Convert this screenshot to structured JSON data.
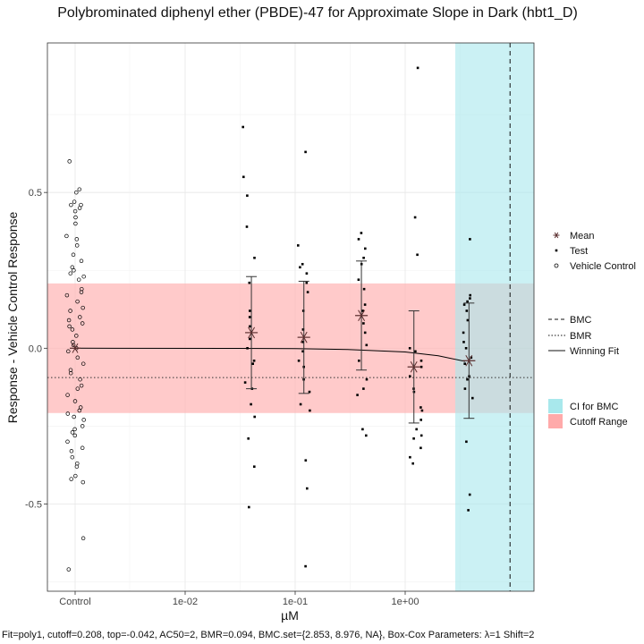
{
  "chart_data": {
    "type": "scatter",
    "title": "Polybrominated diphenyl ether (PBDE)-47 for Approximate Slope in Dark (hbt1_D)",
    "xlabel": "µM",
    "ylabel": "Response - Vehicle Control Response",
    "x_scale": "log10",
    "x_ticks": [
      "Control",
      "1e-02",
      "1e-01",
      "1e+00"
    ],
    "y_ticks": [
      "0.5",
      "0.0",
      "-0.5"
    ],
    "ylim": [
      -0.78,
      0.98
    ],
    "cutoff": 0.208,
    "bmr": -0.094,
    "bmc": 8.976,
    "ci_bmc": [
      2.853,
      8.976
    ],
    "grid": true,
    "legend_position": "right",
    "legend_groups": [
      [
        "Mean",
        "Test",
        "Vehicle Control"
      ],
      [
        "BMC",
        "BMR",
        "Winning Fit"
      ],
      [
        "CI for BMC",
        "Cutoff Range"
      ]
    ],
    "colors": {
      "cutoff": "#ffb3b3",
      "ci": "#a8e8ec",
      "line": "#000000",
      "mean": "#5a2e2e"
    },
    "footer": "Fit=poly1, cutoff=0.208, top=-0.042, AC50=2, BMR=0.094, BMC.set={2.853, 8.976, NA}, Box-Cox Parameters: λ=1 Shift=2",
    "fit_curve": {
      "x": [
        0.001,
        0.03,
        0.1,
        0.3,
        1,
        2,
        3.5
      ],
      "y": [
        0.0,
        -0.0004,
        -0.0014,
        -0.004,
        -0.012,
        -0.024,
        -0.042
      ]
    },
    "vehicle_control": [
      0.6,
      0.51,
      0.5,
      0.47,
      0.46,
      0.46,
      0.45,
      0.44,
      0.42,
      0.4,
      0.36,
      0.35,
      0.33,
      0.3,
      0.28,
      0.26,
      0.25,
      0.24,
      0.23,
      0.22,
      0.19,
      0.18,
      0.17,
      0.15,
      0.13,
      0.12,
      0.1,
      0.09,
      0.08,
      0.07,
      0.06,
      0.04,
      0.02,
      0.01,
      0.0,
      -0.01,
      -0.03,
      -0.05,
      -0.07,
      -0.08,
      -0.1,
      -0.12,
      -0.13,
      -0.15,
      -0.17,
      -0.19,
      -0.2,
      -0.21,
      -0.22,
      -0.23,
      -0.25,
      -0.26,
      -0.27,
      -0.28,
      -0.3,
      -0.32,
      -0.33,
      -0.35,
      -0.37,
      -0.38,
      -0.41,
      -0.42,
      -0.43,
      -0.61,
      -0.71
    ],
    "means": [
      {
        "x": 0.04,
        "mean": 0.05,
        "upper": 0.23,
        "lower": -0.13
      },
      {
        "x": 0.12,
        "mean": 0.035,
        "upper": 0.215,
        "lower": -0.145
      },
      {
        "x": 0.4,
        "mean": 0.105,
        "upper": 0.28,
        "lower": -0.07
      },
      {
        "x": 1.2,
        "mean": -0.06,
        "upper": 0.12,
        "lower": -0.24
      },
      {
        "x": 3.8,
        "mean": -0.04,
        "upper": 0.145,
        "lower": -0.225
      }
    ],
    "test_points": [
      {
        "x": 0.038,
        "y": [
          0.71,
          0.55,
          0.49,
          0.39,
          0.29,
          0.21,
          0.12,
          0.1,
          0.07,
          0.03,
          0.0,
          -0.04,
          -0.05,
          -0.11,
          -0.13,
          -0.18,
          -0.22,
          -0.29,
          -0.38,
          -0.51
        ]
      },
      {
        "x": 0.12,
        "y": [
          0.63,
          0.33,
          0.27,
          0.26,
          0.24,
          0.21,
          0.18,
          0.12,
          0.06,
          0.02,
          -0.01,
          -0.04,
          -0.06,
          -0.1,
          -0.14,
          -0.18,
          -0.2,
          -0.36,
          -0.45,
          -0.7
        ]
      },
      {
        "x": 0.4,
        "y": [
          0.37,
          0.35,
          0.32,
          0.29,
          0.27,
          0.22,
          0.19,
          0.14,
          0.12,
          0.08,
          0.05,
          0.01,
          -0.04,
          -0.1,
          -0.13,
          -0.15,
          -0.26,
          -0.28
        ]
      },
      {
        "x": 1.25,
        "y": [
          0.9,
          0.42,
          0.3,
          0.0,
          -0.01,
          -0.04,
          -0.06,
          -0.09,
          -0.13,
          -0.14,
          -0.19,
          -0.2,
          -0.23,
          -0.26,
          -0.28,
          -0.29,
          -0.32,
          -0.35,
          -0.37
        ]
      },
      {
        "x": 3.8,
        "y": [
          0.35,
          0.17,
          0.16,
          0.15,
          0.14,
          0.12,
          0.09,
          0.05,
          0.02,
          0.0,
          -0.03,
          -0.05,
          -0.09,
          -0.1,
          -0.13,
          -0.16,
          -0.3,
          -0.47,
          -0.52
        ]
      }
    ]
  }
}
